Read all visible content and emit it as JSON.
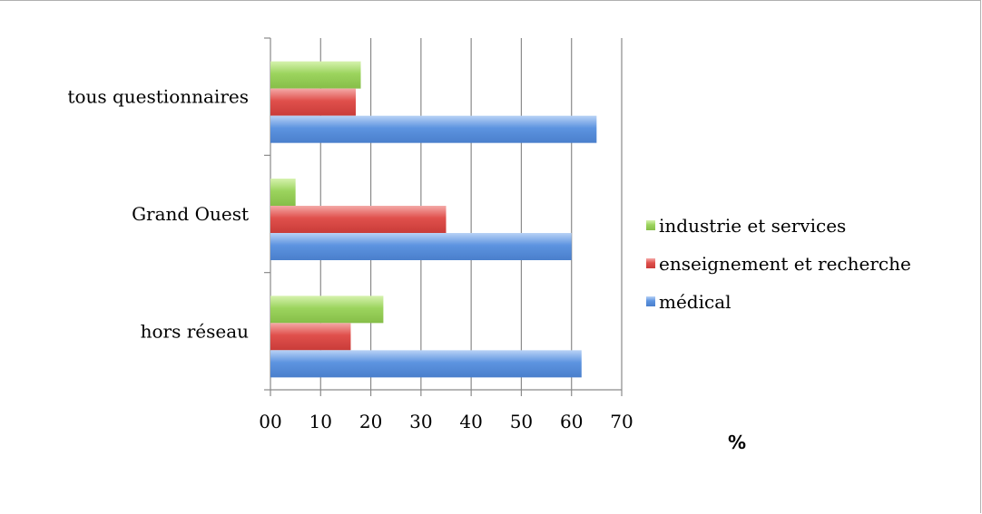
{
  "chart_data": {
    "type": "bar",
    "orientation": "horizontal",
    "categories": [
      "tous questionnaires",
      "Grand Ouest",
      "hors réseau"
    ],
    "series": [
      {
        "name": "industrie et services",
        "color": "#9cd45e",
        "values": [
          18,
          5,
          22.5
        ]
      },
      {
        "name": "enseignement et recherche",
        "color": "#e0504c",
        "values": [
          17,
          35,
          16
        ]
      },
      {
        "name": "médical",
        "color": "#5d94e0",
        "values": [
          65,
          60,
          62
        ]
      }
    ],
    "legend_order": [
      0,
      1,
      2
    ],
    "xlim": [
      0,
      70
    ],
    "x_ticks": [
      "00",
      "10",
      "20",
      "30",
      "40",
      "50",
      "60",
      "70"
    ],
    "x_unit": "%",
    "grid": "vertical",
    "legend_position": "right"
  }
}
